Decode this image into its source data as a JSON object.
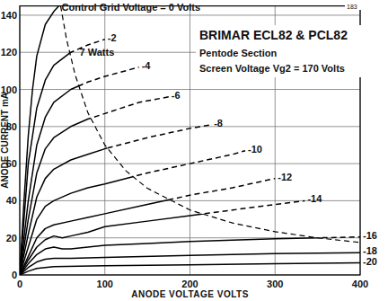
{
  "chart_data": {
    "type": "line",
    "title": "BRIMAR ECL82 & PCL82",
    "subtitle": "Pentode Section",
    "annotations": [
      "Screen Voltage Vg2 = 170 Volts",
      "183"
    ],
    "x_label": "ANODE VOLTAGE VOLTS",
    "y_label": "ANODE CURRENT mA",
    "xlim": [
      0,
      400
    ],
    "ylim": [
      0,
      145
    ],
    "xticks": [
      0,
      100,
      200,
      300,
      400
    ],
    "yticks": [
      0,
      20,
      40,
      60,
      80,
      100,
      120,
      140
    ],
    "grid": true,
    "color": "#000000",
    "series": [
      {
        "name": "Control Grid Voltage = 0 Volts",
        "line_style": "solid",
        "x": [
          0,
          5,
          10,
          15,
          20,
          30,
          40,
          46
        ],
        "values": [
          0,
          40,
          75,
          100,
          118,
          135,
          142,
          145
        ]
      },
      {
        "name": "-2",
        "line_style": "solid",
        "x": [
          0,
          5,
          10,
          20,
          30,
          40,
          60,
          80,
          100
        ],
        "values": [
          0,
          30,
          60,
          90,
          105,
          113,
          120,
          124,
          127
        ]
      },
      {
        "name": "-4",
        "line_style": "solid",
        "x": [
          0,
          10,
          20,
          30,
          40,
          60,
          80,
          100,
          140
        ],
        "values": [
          0,
          40,
          70,
          85,
          93,
          100,
          104,
          107,
          112
        ]
      },
      {
        "name": "-6",
        "line_style": "solid",
        "x": [
          0,
          10,
          20,
          30,
          40,
          60,
          80,
          100,
          140,
          175
        ],
        "values": [
          0,
          30,
          55,
          68,
          74,
          80,
          84,
          87,
          93,
          96
        ]
      },
      {
        "name": "-8",
        "line_style": "solid",
        "x": [
          0,
          10,
          20,
          30,
          40,
          60,
          80,
          100,
          150,
          200,
          225
        ],
        "values": [
          0,
          22,
          42,
          52,
          57,
          62,
          65,
          68,
          74,
          79,
          81
        ]
      },
      {
        "name": "-10",
        "line_style": "solid",
        "x": [
          0,
          10,
          20,
          30,
          40,
          60,
          80,
          100,
          150,
          200,
          250,
          265
        ],
        "values": [
          0,
          15,
          30,
          37,
          40,
          44,
          47,
          49,
          55,
          60,
          65,
          67
        ]
      },
      {
        "name": "-12",
        "line_style": "solid",
        "x": [
          0,
          10,
          20,
          30,
          40,
          60,
          80,
          100,
          150,
          200,
          250,
          300
        ],
        "values": [
          0,
          10,
          20,
          25,
          27,
          29,
          31,
          33,
          38,
          43,
          47,
          52
        ]
      },
      {
        "name": "-14",
        "line_style": "solid",
        "x": [
          0,
          10,
          20,
          30,
          40,
          50,
          60,
          80,
          100,
          150,
          200,
          250,
          300,
          335
        ],
        "values": [
          0,
          8,
          15,
          19,
          21,
          20,
          21,
          23,
          26,
          29,
          32,
          35,
          38,
          40
        ]
      },
      {
        "name": "-16",
        "line_style": "solid",
        "x": [
          0,
          10,
          20,
          30,
          40,
          50,
          60,
          80,
          100,
          150,
          200,
          300,
          400
        ],
        "values": [
          0,
          6,
          11,
          14,
          15,
          14,
          14,
          15,
          16,
          17,
          18,
          19.5,
          20.5
        ]
      },
      {
        "name": "-18",
        "line_style": "solid",
        "x": [
          0,
          10,
          20,
          30,
          40,
          60,
          100,
          200,
          300,
          400
        ],
        "values": [
          0,
          4,
          7,
          8.5,
          9,
          9,
          9.5,
          10.5,
          11.5,
          12
        ]
      },
      {
        "name": "-20",
        "line_style": "solid",
        "x": [
          0,
          10,
          20,
          40,
          100,
          200,
          300,
          400
        ],
        "values": [
          0,
          2,
          3.5,
          4.5,
          5,
          5.5,
          6,
          6.5
        ]
      },
      {
        "name": "7 Watts",
        "line_style": "dashed",
        "x": [
          48,
          55,
          65,
          80,
          100,
          125,
          150,
          200,
          250,
          300,
          350,
          400
        ],
        "values": [
          145,
          127,
          108,
          87.5,
          70,
          56,
          46.7,
          35,
          28,
          23.3,
          20,
          17.5
        ]
      }
    ]
  }
}
